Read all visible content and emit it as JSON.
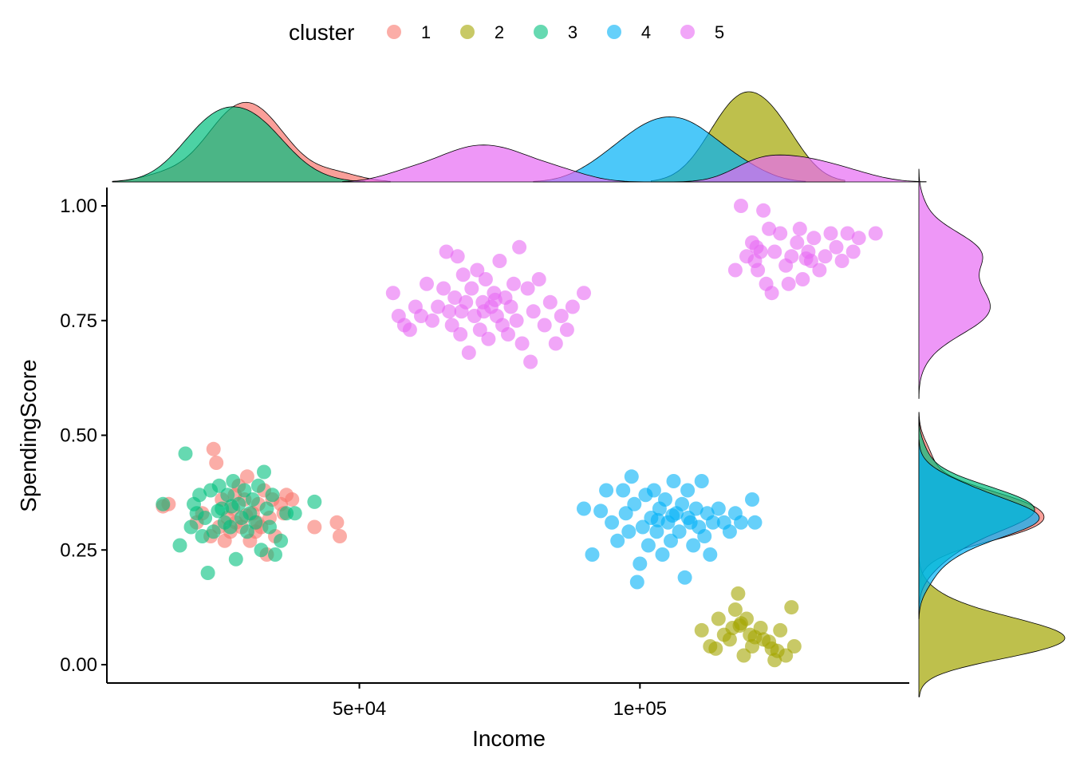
{
  "chart_data": {
    "type": "scatter",
    "xlabel": "Income",
    "ylabel": "SpendingScore",
    "xlim": [
      5000,
      148000
    ],
    "ylim": [
      -0.04,
      1.04
    ],
    "x_ticks": [
      {
        "value": 50000,
        "label": "5e+04"
      },
      {
        "value": 100000,
        "label": "1e+05"
      }
    ],
    "y_ticks": [
      {
        "value": 0.0,
        "label": "0.00"
      },
      {
        "value": 0.25,
        "label": "0.25"
      },
      {
        "value": 0.5,
        "label": "0.50"
      },
      {
        "value": 0.75,
        "label": "0.75"
      },
      {
        "value": 1.0,
        "label": "1.00"
      }
    ],
    "grid": false,
    "legend": {
      "title": "cluster",
      "position": "top"
    },
    "marginal": {
      "top": "density of Income by cluster",
      "right": "density of SpendingScore by cluster"
    },
    "series": [
      {
        "name": "1",
        "color": "#F8766D",
        "centroid": [
          30000,
          0.32
        ],
        "points": [
          [
            15000,
            0.345
          ],
          [
            16000,
            0.35
          ],
          [
            21000,
            0.31
          ],
          [
            22000,
            0.33
          ],
          [
            23500,
            0.28
          ],
          [
            24000,
            0.47
          ],
          [
            24500,
            0.44
          ],
          [
            25000,
            0.3
          ],
          [
            25500,
            0.36
          ],
          [
            26000,
            0.27
          ],
          [
            27000,
            0.29
          ],
          [
            27500,
            0.34
          ],
          [
            28000,
            0.31
          ],
          [
            28500,
            0.39
          ],
          [
            29000,
            0.3
          ],
          [
            29500,
            0.36
          ],
          [
            30000,
            0.41
          ],
          [
            30500,
            0.27
          ],
          [
            31000,
            0.33
          ],
          [
            31500,
            0.29
          ],
          [
            32000,
            0.35
          ],
          [
            32500,
            0.3
          ],
          [
            33000,
            0.38
          ],
          [
            33500,
            0.24
          ],
          [
            34000,
            0.32
          ],
          [
            34500,
            0.36
          ],
          [
            35000,
            0.28
          ],
          [
            36000,
            0.35
          ],
          [
            36500,
            0.33
          ],
          [
            37000,
            0.37
          ],
          [
            38000,
            0.36
          ],
          [
            42000,
            0.3
          ],
          [
            46000,
            0.31
          ],
          [
            46500,
            0.28
          ],
          [
            26500,
            0.32
          ],
          [
            29800,
            0.325
          ],
          [
            27800,
            0.37
          ],
          [
            31800,
            0.31
          ]
        ]
      },
      {
        "name": "2",
        "color": "#A3A500",
        "centroid": [
          118000,
          0.06
        ],
        "points": [
          [
            111000,
            0.075
          ],
          [
            112500,
            0.04
          ],
          [
            113500,
            0.035
          ],
          [
            114000,
            0.1
          ],
          [
            115000,
            0.065
          ],
          [
            116000,
            0.055
          ],
          [
            116500,
            0.08
          ],
          [
            117000,
            0.12
          ],
          [
            117500,
            0.155
          ],
          [
            118000,
            0.09
          ],
          [
            118500,
            0.02
          ],
          [
            119000,
            0.1
          ],
          [
            120000,
            0.04
          ],
          [
            120500,
            0.06
          ],
          [
            121500,
            0.08
          ],
          [
            122000,
            0.055
          ],
          [
            123000,
            0.05
          ],
          [
            123500,
            0.035
          ],
          [
            124000,
            0.01
          ],
          [
            124500,
            0.03
          ],
          [
            125000,
            0.075
          ],
          [
            126000,
            0.02
          ],
          [
            127000,
            0.125
          ],
          [
            127500,
            0.04
          ],
          [
            117800,
            0.085
          ],
          [
            119600,
            0.065
          ]
        ]
      },
      {
        "name": "3",
        "color": "#00BF7D",
        "centroid": [
          29000,
          0.33
        ],
        "points": [
          [
            15000,
            0.35
          ],
          [
            18000,
            0.26
          ],
          [
            19000,
            0.46
          ],
          [
            20000,
            0.3
          ],
          [
            20500,
            0.35
          ],
          [
            21000,
            0.33
          ],
          [
            21500,
            0.37
          ],
          [
            22000,
            0.28
          ],
          [
            22500,
            0.32
          ],
          [
            23000,
            0.2
          ],
          [
            23500,
            0.38
          ],
          [
            24000,
            0.29
          ],
          [
            25000,
            0.39
          ],
          [
            25500,
            0.34
          ],
          [
            26000,
            0.31
          ],
          [
            26500,
            0.37
          ],
          [
            27000,
            0.3
          ],
          [
            27500,
            0.4
          ],
          [
            28000,
            0.23
          ],
          [
            28500,
            0.35
          ],
          [
            29000,
            0.32
          ],
          [
            29500,
            0.38
          ],
          [
            30000,
            0.29
          ],
          [
            30500,
            0.33
          ],
          [
            31000,
            0.36
          ],
          [
            31500,
            0.31
          ],
          [
            32000,
            0.39
          ],
          [
            32500,
            0.25
          ],
          [
            33000,
            0.42
          ],
          [
            33500,
            0.34
          ],
          [
            34000,
            0.3
          ],
          [
            34500,
            0.37
          ],
          [
            35000,
            0.24
          ],
          [
            36000,
            0.27
          ],
          [
            37000,
            0.33
          ],
          [
            38500,
            0.33
          ],
          [
            42000,
            0.355
          ],
          [
            24800,
            0.335
          ],
          [
            27200,
            0.345
          ]
        ]
      },
      {
        "name": "4",
        "color": "#00B0F6",
        "centroid": [
          107000,
          0.32
        ],
        "points": [
          [
            90000,
            0.34
          ],
          [
            91500,
            0.24
          ],
          [
            93000,
            0.335
          ],
          [
            94000,
            0.38
          ],
          [
            95000,
            0.31
          ],
          [
            96000,
            0.27
          ],
          [
            97000,
            0.38
          ],
          [
            97500,
            0.33
          ],
          [
            98000,
            0.29
          ],
          [
            98500,
            0.41
          ],
          [
            99000,
            0.35
          ],
          [
            99500,
            0.18
          ],
          [
            100000,
            0.22
          ],
          [
            100500,
            0.3
          ],
          [
            101000,
            0.37
          ],
          [
            101500,
            0.26
          ],
          [
            102000,
            0.32
          ],
          [
            102500,
            0.38
          ],
          [
            103000,
            0.29
          ],
          [
            103500,
            0.34
          ],
          [
            104000,
            0.24
          ],
          [
            104500,
            0.36
          ],
          [
            105000,
            0.31
          ],
          [
            105500,
            0.27
          ],
          [
            106000,
            0.4
          ],
          [
            106500,
            0.33
          ],
          [
            107000,
            0.29
          ],
          [
            107500,
            0.35
          ],
          [
            108000,
            0.19
          ],
          [
            108500,
            0.38
          ],
          [
            109000,
            0.31
          ],
          [
            109500,
            0.26
          ],
          [
            110000,
            0.34
          ],
          [
            110500,
            0.3
          ],
          [
            111000,
            0.4
          ],
          [
            111500,
            0.28
          ],
          [
            112000,
            0.33
          ],
          [
            112500,
            0.24
          ],
          [
            113000,
            0.31
          ],
          [
            114000,
            0.34
          ],
          [
            115000,
            0.31
          ],
          [
            116000,
            0.29
          ],
          [
            117000,
            0.33
          ],
          [
            118000,
            0.31
          ],
          [
            120000,
            0.36
          ],
          [
            120500,
            0.31
          ],
          [
            103200,
            0.315
          ],
          [
            105800,
            0.325
          ],
          [
            108600,
            0.32
          ]
        ]
      },
      {
        "name": "5",
        "color": "#E76BF3",
        "centroid": [
          70000,
          0.79
        ],
        "points": [
          [
            56000,
            0.81
          ],
          [
            57000,
            0.76
          ],
          [
            58000,
            0.74
          ],
          [
            59000,
            0.73
          ],
          [
            60000,
            0.78
          ],
          [
            61000,
            0.76
          ],
          [
            62000,
            0.83
          ],
          [
            63000,
            0.75
          ],
          [
            64000,
            0.78
          ],
          [
            65000,
            0.82
          ],
          [
            65500,
            0.9
          ],
          [
            66000,
            0.77
          ],
          [
            66500,
            0.74
          ],
          [
            67000,
            0.8
          ],
          [
            67500,
            0.89
          ],
          [
            68000,
            0.72
          ],
          [
            68500,
            0.85
          ],
          [
            69000,
            0.79
          ],
          [
            69500,
            0.68
          ],
          [
            70000,
            0.82
          ],
          [
            70500,
            0.76
          ],
          [
            71000,
            0.86
          ],
          [
            71500,
            0.73
          ],
          [
            72000,
            0.79
          ],
          [
            72500,
            0.84
          ],
          [
            73000,
            0.71
          ],
          [
            73500,
            0.78
          ],
          [
            74000,
            0.81
          ],
          [
            74500,
            0.76
          ],
          [
            75000,
            0.88
          ],
          [
            75500,
            0.74
          ],
          [
            76000,
            0.8
          ],
          [
            76500,
            0.72
          ],
          [
            77000,
            0.78
          ],
          [
            77500,
            0.83
          ],
          [
            78000,
            0.75
          ],
          [
            78500,
            0.91
          ],
          [
            79000,
            0.7
          ],
          [
            80000,
            0.82
          ],
          [
            80500,
            0.66
          ],
          [
            81000,
            0.77
          ],
          [
            82000,
            0.84
          ],
          [
            83000,
            0.74
          ],
          [
            84000,
            0.79
          ],
          [
            85000,
            0.7
          ],
          [
            86000,
            0.76
          ],
          [
            87000,
            0.73
          ],
          [
            88000,
            0.78
          ],
          [
            90000,
            0.81
          ],
          [
            68200,
            0.77
          ],
          [
            72200,
            0.77
          ],
          [
            74200,
            0.795
          ],
          [
            117000,
            0.86
          ],
          [
            118000,
            1.0
          ],
          [
            119000,
            0.89
          ],
          [
            120000,
            0.92
          ],
          [
            120500,
            0.88
          ],
          [
            121000,
            0.86
          ],
          [
            121500,
            0.9
          ],
          [
            122000,
            0.99
          ],
          [
            122500,
            0.83
          ],
          [
            123000,
            0.95
          ],
          [
            123500,
            0.81
          ],
          [
            124000,
            0.9
          ],
          [
            125000,
            0.94
          ],
          [
            126000,
            0.87
          ],
          [
            126500,
            0.83
          ],
          [
            127000,
            0.89
          ],
          [
            128000,
            0.92
          ],
          [
            128500,
            0.95
          ],
          [
            129000,
            0.84
          ],
          [
            130000,
            0.9
          ],
          [
            130500,
            0.88
          ],
          [
            131000,
            0.93
          ],
          [
            132000,
            0.86
          ],
          [
            133000,
            0.89
          ],
          [
            134000,
            0.94
          ],
          [
            135000,
            0.91
          ],
          [
            136000,
            0.88
          ],
          [
            137000,
            0.94
          ],
          [
            138000,
            0.9
          ],
          [
            139000,
            0.93
          ],
          [
            142000,
            0.94
          ],
          [
            120800,
            0.91
          ],
          [
            129600,
            0.885
          ]
        ]
      }
    ]
  }
}
